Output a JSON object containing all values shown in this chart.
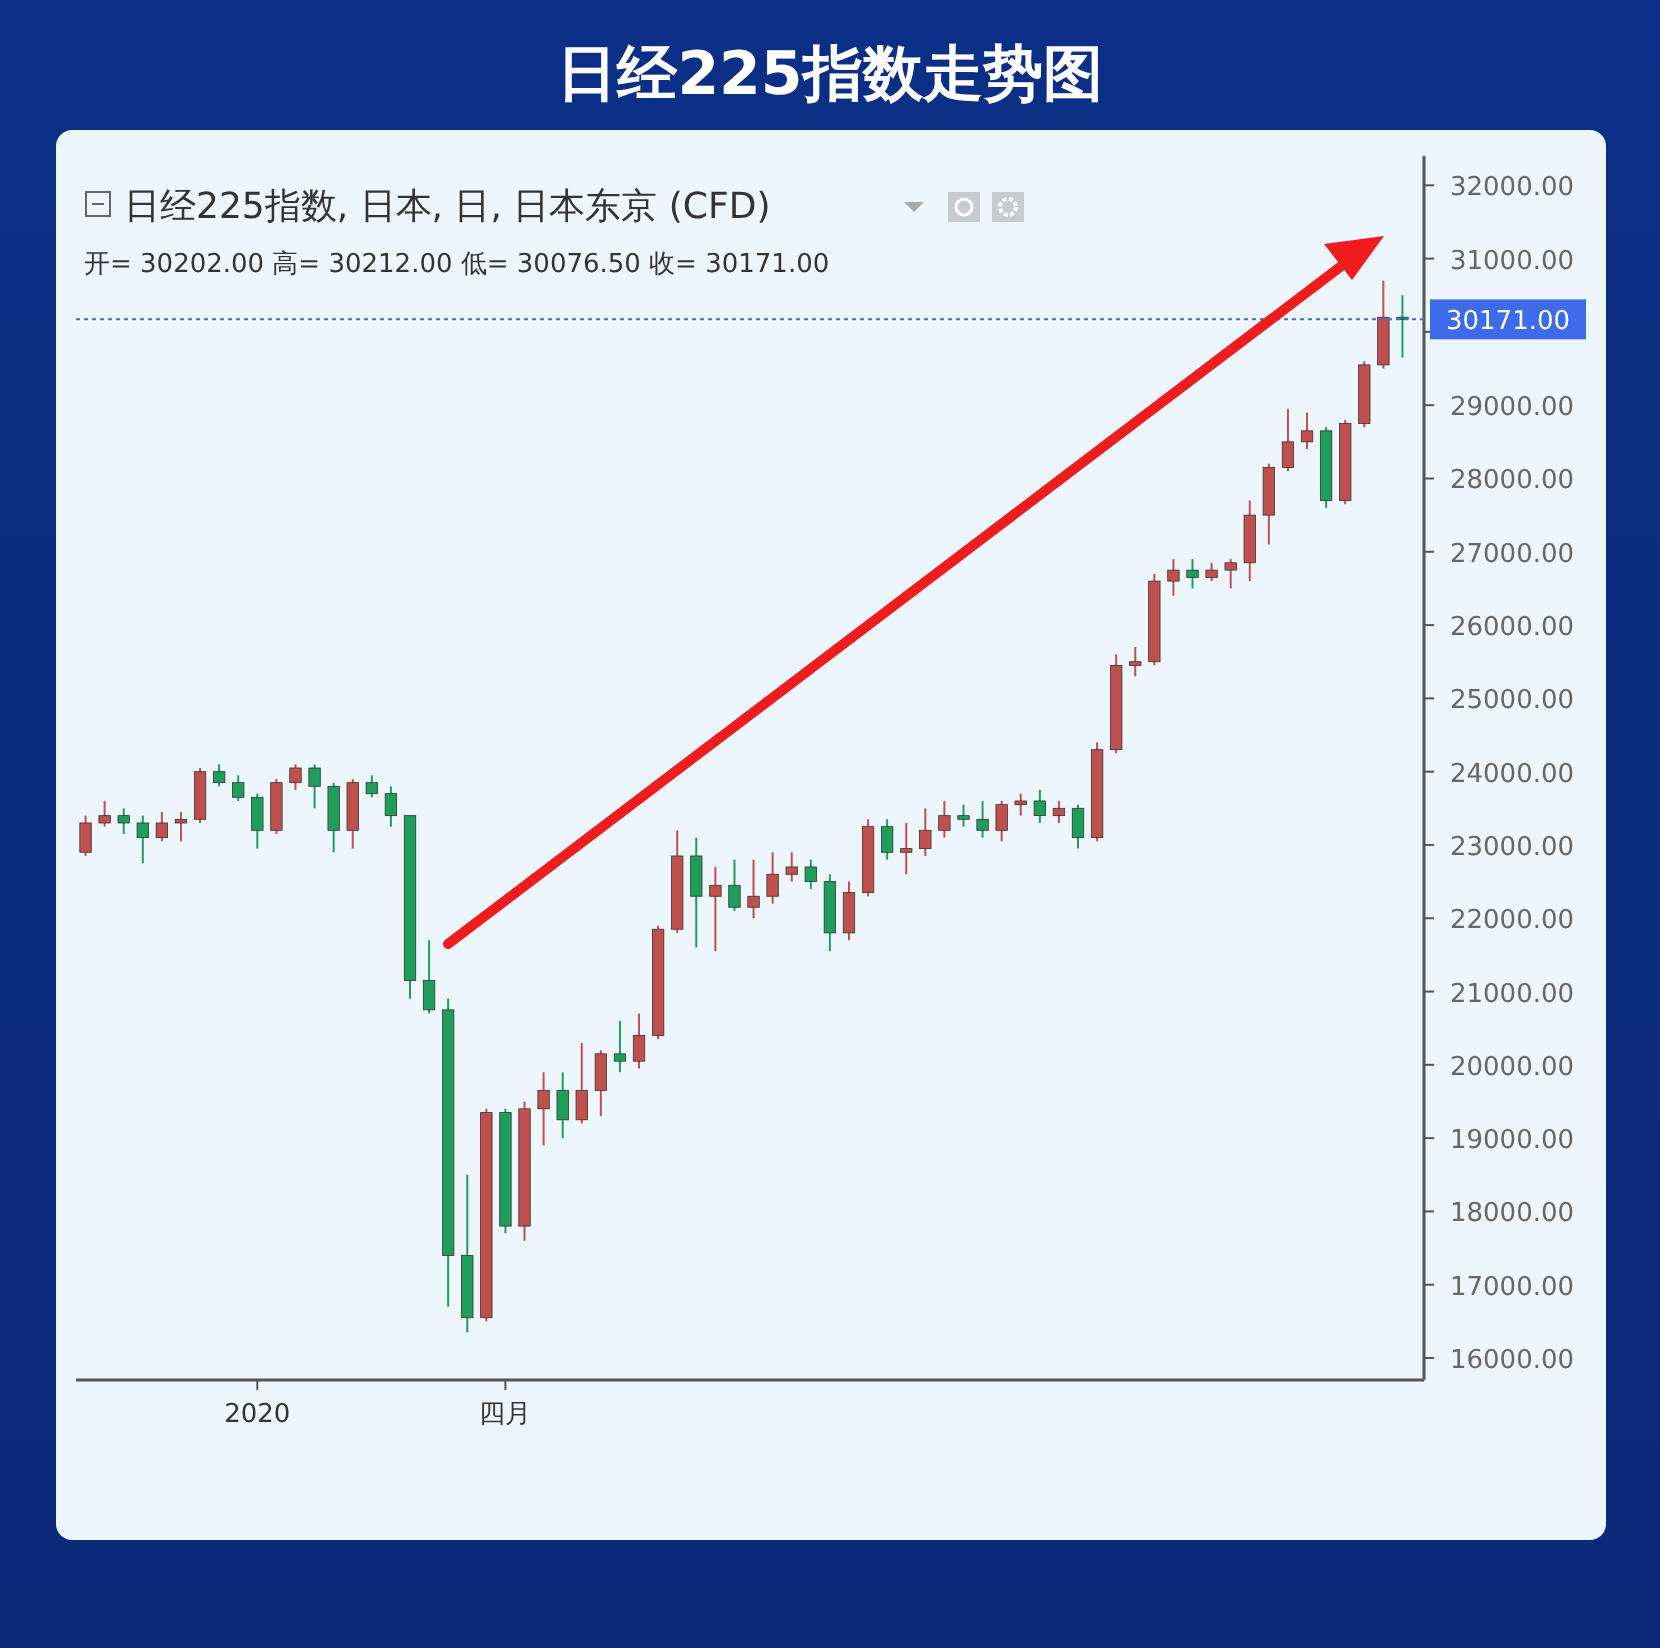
{
  "chart_data": {
    "type": "candlestick",
    "title": "日经225指数走势图",
    "subtitle": "日经225指数, 日本, 日, 日本东京 (CFD)",
    "annotations": [
      "开= 30202.00 高= 30212.00 低= 30076.50 收= 30171.00"
    ],
    "categories": [
      null,
      null,
      null,
      null,
      null,
      null,
      null,
      null,
      null,
      "2020",
      null,
      null,
      null,
      null,
      null,
      null,
      null,
      null,
      null,
      null,
      null,
      null,
      "四月",
      null,
      null,
      null,
      null,
      null,
      null,
      null,
      null,
      null,
      null,
      null,
      null,
      null,
      null,
      null,
      null,
      null,
      null,
      null,
      null,
      null,
      null,
      null,
      null,
      null,
      null,
      null,
      null,
      null,
      null,
      null,
      null,
      null,
      null,
      null,
      null,
      null,
      null,
      null,
      null,
      null,
      null,
      null,
      null,
      null,
      null,
      null
    ],
    "ohlc": [
      [
        22900,
        23400,
        22850,
        23300
      ],
      [
        23300,
        23600,
        23250,
        23400
      ],
      [
        23400,
        23500,
        23150,
        23300
      ],
      [
        23300,
        23400,
        22750,
        23100
      ],
      [
        23100,
        23450,
        23050,
        23300
      ],
      [
        23300,
        23450,
        23050,
        23350
      ],
      [
        23350,
        24050,
        23300,
        24000
      ],
      [
        24000,
        24100,
        23800,
        23850
      ],
      [
        23850,
        23950,
        23600,
        23650
      ],
      [
        23650,
        23700,
        22950,
        23200
      ],
      [
        23200,
        23900,
        23150,
        23850
      ],
      [
        23850,
        24100,
        23750,
        24050
      ],
      [
        24050,
        24100,
        23500,
        23800
      ],
      [
        23800,
        23850,
        22900,
        23200
      ],
      [
        23200,
        23900,
        22950,
        23850
      ],
      [
        23850,
        23950,
        23650,
        23700
      ],
      [
        23700,
        23800,
        23250,
        23400
      ],
      [
        23400,
        23400,
        20900,
        21150
      ],
      [
        21150,
        21700,
        20700,
        20750
      ],
      [
        20750,
        20900,
        16700,
        17400
      ],
      [
        17400,
        18500,
        16350,
        16550
      ],
      [
        16550,
        19400,
        16500,
        19350
      ],
      [
        19350,
        19400,
        17700,
        17800
      ],
      [
        17800,
        19500,
        17600,
        19400
      ],
      [
        19400,
        19900,
        18900,
        19650
      ],
      [
        19650,
        19900,
        19000,
        19250
      ],
      [
        19250,
        20300,
        19200,
        19650
      ],
      [
        19650,
        20200,
        19300,
        20150
      ],
      [
        20150,
        20600,
        19900,
        20050
      ],
      [
        20050,
        20700,
        19950,
        20400
      ],
      [
        20400,
        21900,
        20350,
        21850
      ],
      [
        21850,
        23200,
        21800,
        22850
      ],
      [
        22850,
        23100,
        21600,
        22300
      ],
      [
        22300,
        22700,
        21550,
        22450
      ],
      [
        22450,
        22800,
        22100,
        22150
      ],
      [
        22150,
        22800,
        22000,
        22300
      ],
      [
        22300,
        22900,
        22200,
        22600
      ],
      [
        22600,
        22900,
        22500,
        22700
      ],
      [
        22700,
        22800,
        22400,
        22500
      ],
      [
        22500,
        22600,
        21550,
        21800
      ],
      [
        21800,
        22500,
        21700,
        22350
      ],
      [
        22350,
        23350,
        22300,
        23250
      ],
      [
        23250,
        23350,
        22800,
        22900
      ],
      [
        22900,
        23300,
        22600,
        22950
      ],
      [
        22950,
        23500,
        22850,
        23200
      ],
      [
        23200,
        23600,
        23100,
        23400
      ],
      [
        23400,
        23550,
        23250,
        23350
      ],
      [
        23350,
        23600,
        23100,
        23200
      ],
      [
        23200,
        23600,
        23050,
        23550
      ],
      [
        23550,
        23700,
        23400,
        23600
      ],
      [
        23600,
        23750,
        23300,
        23400
      ],
      [
        23400,
        23600,
        23300,
        23500
      ],
      [
        23500,
        23550,
        22950,
        23100
      ],
      [
        23100,
        24400,
        23050,
        24300
      ],
      [
        24300,
        25600,
        24250,
        25450
      ],
      [
        25450,
        25700,
        25300,
        25500
      ],
      [
        25500,
        26700,
        25450,
        26600
      ],
      [
        26600,
        26900,
        26400,
        26750
      ],
      [
        26750,
        26900,
        26500,
        26650
      ],
      [
        26650,
        26850,
        26600,
        26750
      ],
      [
        26750,
        26900,
        26500,
        26850
      ],
      [
        26850,
        27700,
        26600,
        27500
      ],
      [
        27500,
        28200,
        27100,
        28150
      ],
      [
        28150,
        28950,
        28100,
        28500
      ],
      [
        28500,
        28900,
        28400,
        28650
      ],
      [
        28650,
        28700,
        27600,
        27700
      ],
      [
        27700,
        28800,
        27650,
        28750
      ],
      [
        28750,
        29600,
        28700,
        29550
      ],
      [
        29550,
        30700,
        29500,
        30200
      ],
      [
        30200,
        30500,
        29650,
        30171
      ]
    ],
    "colors": [
      "#c0504d",
      "#c0504d",
      "#1e9e5a",
      "#1e9e5a",
      "#c0504d",
      "#c0504d",
      "#c0504d",
      "#1e9e5a",
      "#1e9e5a",
      "#1e9e5a",
      "#c0504d",
      "#c0504d",
      "#1e9e5a",
      "#1e9e5a",
      "#c0504d",
      "#1e9e5a",
      "#1e9e5a",
      "#1e9e5a",
      "#1e9e5a",
      "#1e9e5a",
      "#1e9e5a",
      "#c0504d",
      "#1e9e5a",
      "#c0504d",
      "#c0504d",
      "#1e9e5a",
      "#c0504d",
      "#c0504d",
      "#1e9e5a",
      "#c0504d",
      "#c0504d",
      "#c0504d",
      "#1e9e5a",
      "#c0504d",
      "#1e9e5a",
      "#c0504d",
      "#c0504d",
      "#c0504d",
      "#1e9e5a",
      "#1e9e5a",
      "#c0504d",
      "#c0504d",
      "#1e9e5a",
      "#c0504d",
      "#c0504d",
      "#c0504d",
      "#1e9e5a",
      "#1e9e5a",
      "#c0504d",
      "#c0504d",
      "#1e9e5a",
      "#c0504d",
      "#1e9e5a",
      "#c0504d",
      "#c0504d",
      "#c0504d",
      "#c0504d",
      "#c0504d",
      "#1e9e5a",
      "#c0504d",
      "#c0504d",
      "#c0504d",
      "#c0504d",
      "#c0504d",
      "#c0504d",
      "#1e9e5a",
      "#c0504d",
      "#c0504d",
      "#c0504d",
      "#1e9e5a"
    ],
    "ylim": [
      15700,
      32400
    ],
    "yticks": [
      {
        "value": 16000,
        "label": "16000.00"
      },
      {
        "value": 17000,
        "label": "17000.00"
      },
      {
        "value": 18000,
        "label": "18000.00"
      },
      {
        "value": 19000,
        "label": "19000.00"
      },
      {
        "value": 20000,
        "label": "20000.00"
      },
      {
        "value": 21000,
        "label": "21000.00"
      },
      {
        "value": 22000,
        "label": "22000.00"
      },
      {
        "value": 23000,
        "label": "23000.00"
      },
      {
        "value": 24000,
        "label": "24000.00"
      },
      {
        "value": 25000,
        "label": "25000.00"
      },
      {
        "value": 26000,
        "label": "26000.00"
      },
      {
        "value": 27000,
        "label": "27000.00"
      },
      {
        "value": 28000,
        "label": "28000.00"
      },
      {
        "value": 29000,
        "label": "29000.00"
      },
      {
        "value": 30000,
        "label": null
      },
      {
        "value": 31000,
        "label": "31000.00"
      },
      {
        "value": 32000,
        "label": "32000.00"
      }
    ],
    "ref_lines": [
      {
        "axis": "y",
        "value": 30171,
        "label": "30171.00",
        "color": "#3d6bea",
        "line_style": "dotted"
      }
    ],
    "grid": false
  }
}
